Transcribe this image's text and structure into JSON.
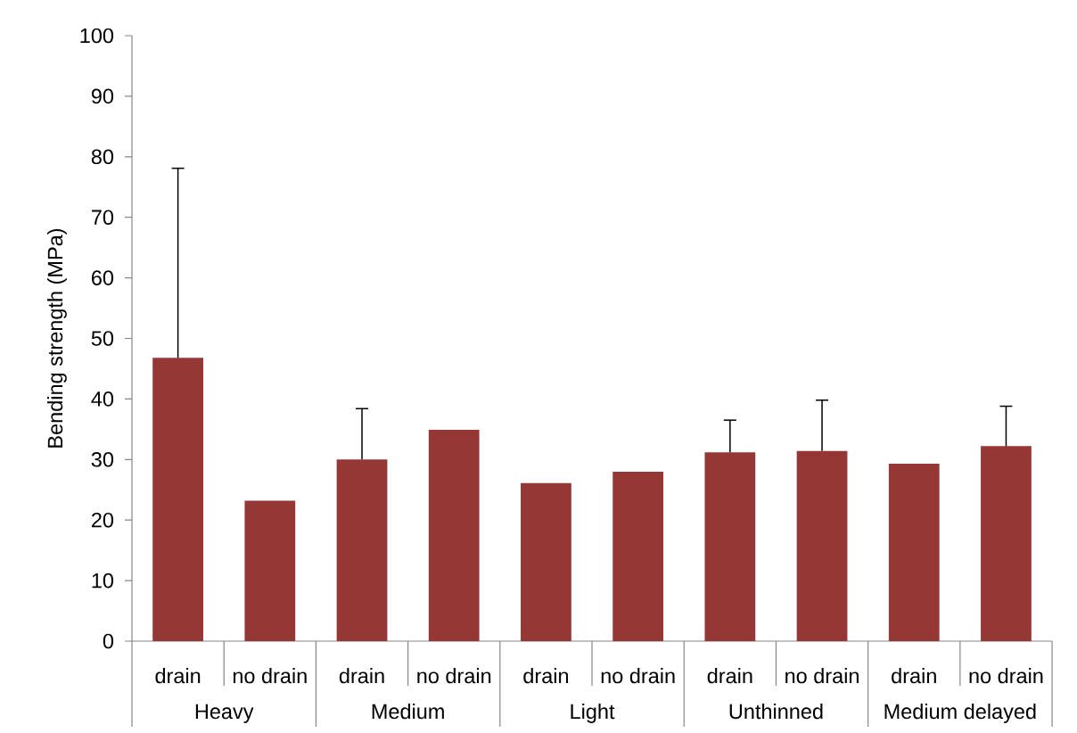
{
  "chart_data": {
    "type": "bar",
    "ylabel": "Bending strength (MPa)",
    "categories": [
      "drain",
      "no drain",
      "drain",
      "no drain",
      "drain",
      "no drain",
      "drain",
      "no drain",
      "drain",
      "no drain"
    ],
    "values": [
      46.8,
      23.2,
      30.0,
      34.9,
      26.1,
      28.0,
      31.2,
      31.4,
      29.3,
      32.2
    ],
    "errors": [
      [
        46.8,
        78.1
      ],
      null,
      [
        30.0,
        38.4
      ],
      null,
      null,
      null,
      [
        31.2,
        36.5
      ],
      [
        31.4,
        39.8
      ],
      null,
      [
        32.2,
        38.8
      ]
    ],
    "color": "#953735",
    "ylim": [
      0,
      100
    ],
    "yticks": [
      0,
      10,
      20,
      30,
      40,
      50,
      60,
      70,
      80,
      90,
      100
    ],
    "annotations": [
      "Heavy",
      "Medium",
      "Light",
      "Unthinned",
      "Medium delayed"
    ]
  }
}
